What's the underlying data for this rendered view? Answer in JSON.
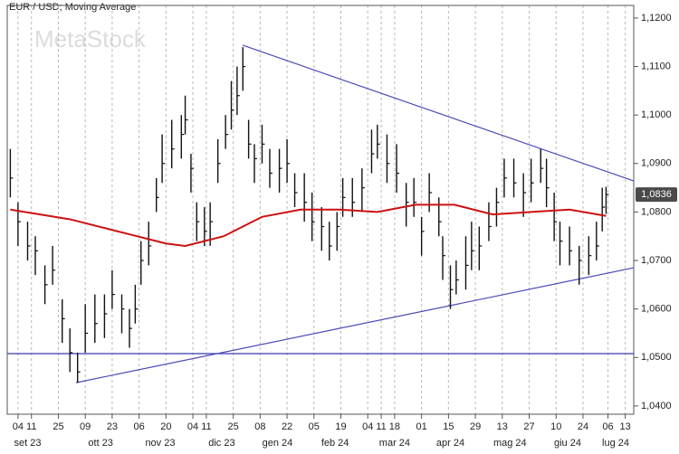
{
  "chart_data": {
    "type": "ohlc",
    "title": "EUR / USD; Moving Average",
    "watermark": "MetaStock",
    "xlim": [
      -2.6,
      323.4
    ],
    "ylim": [
      1.0383,
      1.1226
    ],
    "grid": "x",
    "yticks": [
      {
        "value": 1.04,
        "label": "1,0400"
      },
      {
        "value": 1.05,
        "label": "1,0500"
      },
      {
        "value": 1.06,
        "label": "1,0600"
      },
      {
        "value": 1.07,
        "label": "1,0700"
      },
      {
        "value": 1.08,
        "label": "1,0800"
      },
      {
        "value": 1.09,
        "label": "1,0900"
      },
      {
        "value": 1.1,
        "label": "1,1000"
      },
      {
        "value": 1.11,
        "label": "1,1100"
      },
      {
        "value": 1.12,
        "label": "1,1200"
      }
    ],
    "xticks": [
      {
        "value": 3,
        "label": "04"
      },
      {
        "value": 10,
        "label": "11"
      },
      {
        "value": 24,
        "label": "25"
      },
      {
        "value": 38,
        "label": "09"
      },
      {
        "value": 52,
        "label": "23"
      },
      {
        "value": 66,
        "label": "06"
      },
      {
        "value": 80,
        "label": "20"
      },
      {
        "value": 94,
        "label": "04"
      },
      {
        "value": 101,
        "label": "11"
      },
      {
        "value": 115,
        "label": "25"
      },
      {
        "value": 129,
        "label": "08"
      },
      {
        "value": 143,
        "label": "22"
      },
      {
        "value": 157,
        "label": "05"
      },
      {
        "value": 171,
        "label": "19"
      },
      {
        "value": 185,
        "label": "04"
      },
      {
        "value": 192,
        "label": "11"
      },
      {
        "value": 199,
        "label": "18"
      },
      {
        "value": 213,
        "label": "01"
      },
      {
        "value": 227,
        "label": "15"
      },
      {
        "value": 241,
        "label": "29"
      },
      {
        "value": 255,
        "label": "13"
      },
      {
        "value": 269,
        "label": "27"
      },
      {
        "value": 283,
        "label": "10"
      },
      {
        "value": 297,
        "label": "24"
      },
      {
        "value": 310,
        "label": "06"
      },
      {
        "value": 319,
        "label": "13"
      }
    ],
    "month_labels": [
      {
        "value": 8,
        "label": "set 23"
      },
      {
        "value": 46,
        "label": "ott 23"
      },
      {
        "value": 77,
        "label": "nov 23"
      },
      {
        "value": 109,
        "label": "dic 23"
      },
      {
        "value": 138,
        "label": "gen 24"
      },
      {
        "value": 168,
        "label": "feb 24"
      },
      {
        "value": 199,
        "label": "mar 24"
      },
      {
        "value": 228,
        "label": "apr 24"
      },
      {
        "value": 259,
        "label": "mag 24"
      },
      {
        "value": 289,
        "label": "giu 24"
      },
      {
        "value": 314,
        "label": "lug 24"
      }
    ],
    "price": {
      "color": "#111111",
      "x": [
        -1,
        3,
        8,
        12,
        17,
        21,
        26,
        30,
        34,
        38,
        43,
        48,
        52,
        57,
        61,
        64,
        67,
        71,
        75,
        78,
        83,
        88,
        90,
        93,
        96,
        100,
        103,
        107,
        111,
        114,
        117,
        120,
        123,
        126,
        130,
        134,
        139,
        143,
        147,
        152,
        156,
        161,
        165,
        169,
        172,
        177,
        182,
        187,
        190,
        195,
        200,
        205,
        209,
        213,
        217,
        222,
        224,
        228,
        231,
        236,
        239,
        243,
        248,
        252,
        256,
        261,
        266,
        270,
        275,
        278,
        282,
        285,
        290,
        295,
        300,
        304,
        307,
        309
      ],
      "high": [
        1.093,
        1.082,
        1.078,
        1.075,
        1.069,
        1.073,
        1.062,
        1.056,
        1.051,
        1.061,
        1.063,
        1.063,
        1.068,
        1.063,
        1.06,
        1.065,
        1.074,
        1.078,
        1.087,
        1.096,
        1.099,
        1.1,
        1.104,
        1.092,
        1.082,
        1.081,
        1.082,
        1.095,
        1.1,
        1.107,
        1.11,
        1.114,
        1.099,
        1.094,
        1.098,
        1.093,
        1.093,
        1.095,
        1.088,
        1.088,
        1.084,
        1.081,
        1.078,
        1.08,
        1.087,
        1.087,
        1.089,
        1.097,
        1.098,
        1.096,
        1.094,
        1.086,
        1.087,
        1.079,
        1.088,
        1.083,
        1.075,
        1.069,
        1.07,
        1.075,
        1.078,
        1.077,
        1.082,
        1.085,
        1.091,
        1.091,
        1.088,
        1.091,
        1.093,
        1.091,
        1.084,
        1.078,
        1.077,
        1.073,
        1.075,
        1.078,
        1.085,
        1.0852
      ],
      "low": [
        1.083,
        1.073,
        1.07,
        1.067,
        1.061,
        1.065,
        1.053,
        1.047,
        1.0448,
        1.051,
        1.053,
        1.054,
        1.06,
        1.055,
        1.052,
        1.057,
        1.065,
        1.069,
        1.08,
        1.086,
        1.089,
        1.091,
        1.096,
        1.084,
        1.074,
        1.073,
        1.073,
        1.086,
        1.093,
        1.097,
        1.1,
        1.105,
        1.091,
        1.086,
        1.09,
        1.085,
        1.084,
        1.086,
        1.081,
        1.078,
        1.074,
        1.072,
        1.07,
        1.072,
        1.079,
        1.079,
        1.08,
        1.088,
        1.091,
        1.086,
        1.084,
        1.077,
        1.079,
        1.071,
        1.08,
        1.075,
        1.066,
        1.06,
        1.063,
        1.064,
        1.068,
        1.068,
        1.074,
        1.077,
        1.083,
        1.083,
        1.079,
        1.082,
        1.086,
        1.081,
        1.074,
        1.069,
        1.069,
        1.065,
        1.067,
        1.07,
        1.076,
        1.0796
      ],
      "close": [
        1.087,
        1.078,
        1.073,
        1.072,
        1.065,
        1.068,
        1.058,
        1.051,
        1.047,
        1.055,
        1.057,
        1.059,
        1.063,
        1.06,
        1.056,
        1.06,
        1.07,
        1.073,
        1.083,
        1.09,
        1.093,
        1.096,
        1.099,
        1.089,
        1.078,
        1.076,
        1.078,
        1.09,
        1.096,
        1.101,
        1.104,
        1.11,
        1.094,
        1.091,
        1.094,
        1.088,
        1.089,
        1.09,
        1.084,
        1.082,
        1.078,
        1.077,
        1.073,
        1.077,
        1.083,
        1.082,
        1.085,
        1.092,
        1.094,
        1.09,
        1.088,
        1.082,
        1.082,
        1.076,
        1.084,
        1.078,
        1.071,
        1.064,
        1.066,
        1.069,
        1.072,
        1.073,
        1.077,
        1.082,
        1.087,
        1.086,
        1.084,
        1.086,
        1.089,
        1.085,
        1.078,
        1.074,
        1.072,
        1.07,
        1.071,
        1.073,
        1.081,
        1.0836
      ]
    },
    "moving_average": {
      "color": "#cc1111",
      "x": [
        -1,
        30,
        60,
        80,
        90,
        110,
        130,
        150,
        170,
        190,
        210,
        230,
        250,
        270,
        290,
        309
      ],
      "values": [
        1.0805,
        1.0785,
        1.0755,
        1.0735,
        1.073,
        1.075,
        1.079,
        1.0805,
        1.0805,
        1.08,
        1.0815,
        1.0815,
        1.0795,
        1.08,
        1.0805,
        1.0792
      ]
    },
    "trendlines": [
      {
        "color": "#4a4ab8",
        "x": [
          119.9,
          323.4
        ],
        "y": [
          1.1144,
          1.0864
        ]
      },
      {
        "color": "#4a4ab8",
        "x": [
          33.2,
          323.4
        ],
        "y": [
          1.0448,
          1.0685
        ]
      }
    ],
    "hline": {
      "color": "#3a3ab0",
      "value": 1.0508
    },
    "last_price": {
      "value": 1.0836,
      "label": "1,0836"
    }
  }
}
